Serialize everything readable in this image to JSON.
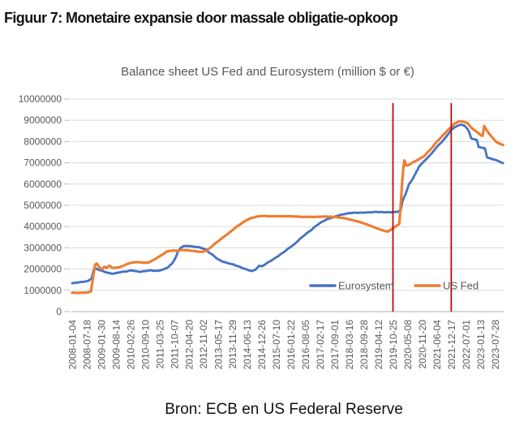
{
  "page": {
    "title": "Figuur 7: Monetaire expansie door massale obligatie-opkoop",
    "caption": "Bron: ECB en US Federal Reserve"
  },
  "colors": {
    "eurosystem_line": "#4472C4",
    "us_fed_line": "#ED7D31",
    "event_line": "#C00000",
    "gridline": "#D9D9D9",
    "axis_line": "#BFBFBF",
    "axis_text": "#595959"
  },
  "chart_data": {
    "type": "line",
    "title": "Balance sheet US Fed and Eurosystem (million $ or €)",
    "values_unit": "million $ or €",
    "grid": "horizontal",
    "legend_position": "inside-bottom-right",
    "y_axis": {
      "min": 0,
      "max": 10000000,
      "tick_interval": 1000000,
      "tick_labels": [
        "0",
        "1000000",
        "2000000",
        "3000000",
        "4000000",
        "5000000",
        "6000000",
        "7000000",
        "8000000",
        "9000000",
        "10000000"
      ]
    },
    "x_axis": {
      "unit": "weekly dates",
      "tick_labels": [
        "2008-01-04",
        "2008-07-18",
        "2009-01-30",
        "2009-08-14",
        "2010-02-26",
        "2010-09-10",
        "2011-03-25",
        "2011-10-07",
        "2012-04-20",
        "2012-11-02",
        "2013-05-17",
        "2013-11-29",
        "2014-06-13",
        "2014-12-26",
        "2015-07-10",
        "2016-01-22",
        "2016-08-05",
        "2017-02-17",
        "2017-09-01",
        "2018-03-16",
        "2018-09-28",
        "2019-04-12",
        "2019-10-25",
        "2020-05-08",
        "2020-11-20",
        "2021-06-04",
        "2021-12-17",
        "2022-07-01",
        "2023-01-13",
        "2023-07-28"
      ]
    },
    "event_lines": [
      {
        "date": "2019-10-25",
        "color": "#C00000"
      },
      {
        "date": "2021-12-17",
        "color": "#C00000"
      }
    ],
    "points_format": [
      "decimal_year",
      "value_million"
    ],
    "series": [
      {
        "name": "Eurosystem",
        "color": "#4472C4",
        "points": [
          [
            2008.01,
            1330000
          ],
          [
            2008.2,
            1370000
          ],
          [
            2008.4,
            1400000
          ],
          [
            2008.6,
            1440000
          ],
          [
            2008.72,
            1560000
          ],
          [
            2008.8,
            1950000
          ],
          [
            2008.9,
            2020000
          ],
          [
            2009.0,
            1960000
          ],
          [
            2009.15,
            1900000
          ],
          [
            2009.3,
            1830000
          ],
          [
            2009.5,
            1780000
          ],
          [
            2009.65,
            1820000
          ],
          [
            2009.8,
            1860000
          ],
          [
            2010.0,
            1890000
          ],
          [
            2010.2,
            1940000
          ],
          [
            2010.35,
            1900000
          ],
          [
            2010.5,
            1870000
          ],
          [
            2010.7,
            1910000
          ],
          [
            2010.9,
            1940000
          ],
          [
            2011.1,
            1910000
          ],
          [
            2011.25,
            1940000
          ],
          [
            2011.4,
            2000000
          ],
          [
            2011.55,
            2100000
          ],
          [
            2011.7,
            2280000
          ],
          [
            2011.8,
            2500000
          ],
          [
            2011.9,
            2800000
          ],
          [
            2012.0,
            3000000
          ],
          [
            2012.1,
            3080000
          ],
          [
            2012.3,
            3090000
          ],
          [
            2012.5,
            3050000
          ],
          [
            2012.7,
            3020000
          ],
          [
            2012.9,
            2940000
          ],
          [
            2013.05,
            2780000
          ],
          [
            2013.2,
            2650000
          ],
          [
            2013.35,
            2480000
          ],
          [
            2013.5,
            2380000
          ],
          [
            2013.7,
            2290000
          ],
          [
            2013.9,
            2230000
          ],
          [
            2014.1,
            2140000
          ],
          [
            2014.3,
            2040000
          ],
          [
            2014.5,
            1950000
          ],
          [
            2014.62,
            1900000
          ],
          [
            2014.75,
            1970000
          ],
          [
            2014.88,
            2150000
          ],
          [
            2015.0,
            2130000
          ],
          [
            2015.2,
            2300000
          ],
          [
            2015.4,
            2450000
          ],
          [
            2015.6,
            2620000
          ],
          [
            2015.8,
            2800000
          ],
          [
            2016.0,
            3000000
          ],
          [
            2016.2,
            3180000
          ],
          [
            2016.4,
            3430000
          ],
          [
            2016.6,
            3640000
          ],
          [
            2016.8,
            3830000
          ],
          [
            2017.0,
            4050000
          ],
          [
            2017.2,
            4220000
          ],
          [
            2017.4,
            4350000
          ],
          [
            2017.6,
            4430000
          ],
          [
            2017.8,
            4520000
          ],
          [
            2018.0,
            4580000
          ],
          [
            2018.2,
            4630000
          ],
          [
            2018.4,
            4650000
          ],
          [
            2018.6,
            4650000
          ],
          [
            2018.8,
            4660000
          ],
          [
            2019.0,
            4670000
          ],
          [
            2019.2,
            4690000
          ],
          [
            2019.4,
            4680000
          ],
          [
            2019.6,
            4670000
          ],
          [
            2019.87,
            4680000
          ],
          [
            2020.0,
            4700000
          ],
          [
            2020.1,
            4780000
          ],
          [
            2020.18,
            5250000
          ],
          [
            2020.28,
            5520000
          ],
          [
            2020.4,
            5980000
          ],
          [
            2020.5,
            6150000
          ],
          [
            2020.65,
            6500000
          ],
          [
            2020.8,
            6870000
          ],
          [
            2020.95,
            7050000
          ],
          [
            2021.1,
            7250000
          ],
          [
            2021.25,
            7450000
          ],
          [
            2021.4,
            7700000
          ],
          [
            2021.55,
            7900000
          ],
          [
            2021.7,
            8100000
          ],
          [
            2021.85,
            8350000
          ],
          [
            2021.97,
            8550000
          ],
          [
            2022.1,
            8680000
          ],
          [
            2022.2,
            8750000
          ],
          [
            2022.35,
            8790000
          ],
          [
            2022.45,
            8750000
          ],
          [
            2022.55,
            8600000
          ],
          [
            2022.62,
            8450000
          ],
          [
            2022.7,
            8150000
          ],
          [
            2022.8,
            8100000
          ],
          [
            2022.9,
            8080000
          ],
          [
            2022.97,
            7750000
          ],
          [
            2023.1,
            7700000
          ],
          [
            2023.2,
            7680000
          ],
          [
            2023.28,
            7250000
          ],
          [
            2023.4,
            7200000
          ],
          [
            2023.55,
            7150000
          ],
          [
            2023.7,
            7080000
          ],
          [
            2023.8,
            7020000
          ],
          [
            2023.87,
            6980000
          ]
        ]
      },
      {
        "name": "US Fed",
        "color": "#ED7D31",
        "points": [
          [
            2008.01,
            890000
          ],
          [
            2008.2,
            880000
          ],
          [
            2008.4,
            890000
          ],
          [
            2008.6,
            900000
          ],
          [
            2008.7,
            950000
          ],
          [
            2008.78,
            1600000
          ],
          [
            2008.85,
            2200000
          ],
          [
            2008.92,
            2260000
          ],
          [
            2009.0,
            2090000
          ],
          [
            2009.1,
            1990000
          ],
          [
            2009.2,
            2110000
          ],
          [
            2009.28,
            2060000
          ],
          [
            2009.38,
            2160000
          ],
          [
            2009.48,
            2070000
          ],
          [
            2009.6,
            2060000
          ],
          [
            2009.75,
            2090000
          ],
          [
            2009.9,
            2160000
          ],
          [
            2010.05,
            2250000
          ],
          [
            2010.2,
            2300000
          ],
          [
            2010.35,
            2330000
          ],
          [
            2010.5,
            2320000
          ],
          [
            2010.65,
            2300000
          ],
          [
            2010.8,
            2300000
          ],
          [
            2010.95,
            2390000
          ],
          [
            2011.1,
            2500000
          ],
          [
            2011.25,
            2620000
          ],
          [
            2011.4,
            2740000
          ],
          [
            2011.5,
            2830000
          ],
          [
            2011.6,
            2860000
          ],
          [
            2011.75,
            2870000
          ],
          [
            2011.9,
            2860000
          ],
          [
            2012.05,
            2900000
          ],
          [
            2012.2,
            2890000
          ],
          [
            2012.35,
            2870000
          ],
          [
            2012.5,
            2850000
          ],
          [
            2012.65,
            2820000
          ],
          [
            2012.8,
            2810000
          ],
          [
            2012.95,
            2870000
          ],
          [
            2013.1,
            3010000
          ],
          [
            2013.25,
            3180000
          ],
          [
            2013.4,
            3330000
          ],
          [
            2013.55,
            3480000
          ],
          [
            2013.7,
            3620000
          ],
          [
            2013.85,
            3770000
          ],
          [
            2014.0,
            3930000
          ],
          [
            2014.15,
            4070000
          ],
          [
            2014.3,
            4200000
          ],
          [
            2014.45,
            4320000
          ],
          [
            2014.6,
            4400000
          ],
          [
            2014.75,
            4450000
          ],
          [
            2014.9,
            4490000
          ],
          [
            2015.1,
            4500000
          ],
          [
            2015.3,
            4480000
          ],
          [
            2015.5,
            4490000
          ],
          [
            2015.7,
            4480000
          ],
          [
            2015.9,
            4490000
          ],
          [
            2016.1,
            4480000
          ],
          [
            2016.3,
            4470000
          ],
          [
            2016.5,
            4450000
          ],
          [
            2016.7,
            4460000
          ],
          [
            2016.9,
            4450000
          ],
          [
            2017.1,
            4460000
          ],
          [
            2017.3,
            4470000
          ],
          [
            2017.5,
            4460000
          ],
          [
            2017.7,
            4450000
          ],
          [
            2017.85,
            4420000
          ],
          [
            2018.0,
            4400000
          ],
          [
            2018.15,
            4360000
          ],
          [
            2018.3,
            4310000
          ],
          [
            2018.5,
            4250000
          ],
          [
            2018.7,
            4170000
          ],
          [
            2018.9,
            4080000
          ],
          [
            2019.1,
            3980000
          ],
          [
            2019.3,
            3880000
          ],
          [
            2019.5,
            3800000
          ],
          [
            2019.62,
            3760000
          ],
          [
            2019.75,
            3860000
          ],
          [
            2019.87,
            3970000
          ],
          [
            2019.97,
            4060000
          ],
          [
            2020.05,
            4120000
          ],
          [
            2020.1,
            5000000
          ],
          [
            2020.15,
            6000000
          ],
          [
            2020.2,
            6800000
          ],
          [
            2020.24,
            7120000
          ],
          [
            2020.3,
            6870000
          ],
          [
            2020.4,
            6900000
          ],
          [
            2020.5,
            6980000
          ],
          [
            2020.65,
            7080000
          ],
          [
            2020.8,
            7190000
          ],
          [
            2020.95,
            7300000
          ],
          [
            2021.1,
            7500000
          ],
          [
            2021.25,
            7700000
          ],
          [
            2021.4,
            7950000
          ],
          [
            2021.55,
            8150000
          ],
          [
            2021.7,
            8350000
          ],
          [
            2021.85,
            8550000
          ],
          [
            2021.97,
            8700000
          ],
          [
            2022.1,
            8850000
          ],
          [
            2022.25,
            8950000
          ],
          [
            2022.4,
            8930000
          ],
          [
            2022.55,
            8880000
          ],
          [
            2022.7,
            8650000
          ],
          [
            2022.85,
            8500000
          ],
          [
            2022.95,
            8400000
          ],
          [
            2023.05,
            8300000
          ],
          [
            2023.12,
            8270000
          ],
          [
            2023.17,
            8730000
          ],
          [
            2023.27,
            8520000
          ],
          [
            2023.38,
            8330000
          ],
          [
            2023.5,
            8150000
          ],
          [
            2023.65,
            7950000
          ],
          [
            2023.8,
            7870000
          ],
          [
            2023.87,
            7840000
          ]
        ]
      }
    ]
  }
}
